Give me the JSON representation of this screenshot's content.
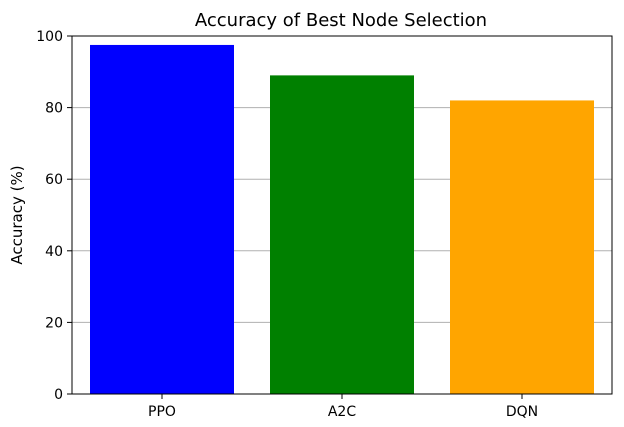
{
  "chart_data": {
    "type": "bar",
    "title": "Accuracy of Best Node Selection",
    "xlabel": "",
    "ylabel": "Accuracy (%)",
    "categories": [
      "PPO",
      "A2C",
      "DQN"
    ],
    "values": [
      97.5,
      89,
      82
    ],
    "colors": [
      "#0000ff",
      "#008000",
      "#ffa500"
    ],
    "ylim": [
      0,
      100
    ],
    "yticks": [
      0,
      20,
      40,
      60,
      80,
      100
    ],
    "grid": "y"
  }
}
